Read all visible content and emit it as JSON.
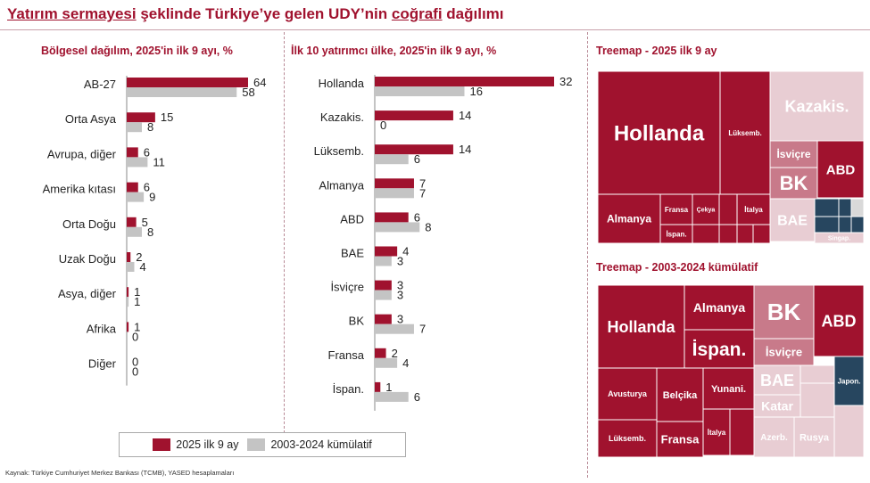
{
  "header": {
    "title_part1": "Yatırım sermayesi",
    "title_part2": " şeklinde Türkiye’ye gelen UDY’nin ",
    "title_part3": "coğrafi",
    "title_part4": " dağılımı"
  },
  "colors": {
    "primary": "#a0122e",
    "secondary": "#c4c4c4",
    "pink": "#e8cdd3",
    "rose": "#c87a8a",
    "navy": "#27465f"
  },
  "chart_data": [
    {
      "type": "bar",
      "orientation": "horizontal",
      "title": "Bölgesel dağılım, 2025'in ilk 9 ayı, %",
      "categories": [
        "AB-27",
        "Orta Asya",
        "Avrupa, diğer",
        "Amerika kıtası",
        "Orta Doğu",
        "Uzak Doğu",
        "Asya, diğer",
        "Afrika",
        "Diğer"
      ],
      "series": [
        {
          "name": "2025 ilk 9 ay",
          "values": [
            64,
            15,
            6,
            6,
            5,
            2,
            1,
            1,
            0
          ]
        },
        {
          "name": "2003-2024 kümülatif",
          "values": [
            58,
            8,
            11,
            9,
            8,
            4,
            1,
            0,
            0
          ]
        }
      ],
      "xlim": [
        0,
        64
      ]
    },
    {
      "type": "bar",
      "orientation": "horizontal",
      "title": "İlk 10 yatırımcı ülke, 2025'in ilk 9 ayı, %",
      "categories": [
        "Hollanda",
        "Kazakis.",
        "Lüksemb.",
        "Almanya",
        "ABD",
        "BAE",
        "İsviçre",
        "BK",
        "Fransa",
        "İspan."
      ],
      "series": [
        {
          "name": "2025 ilk 9 ay",
          "values": [
            32,
            14,
            14,
            7,
            6,
            4,
            3,
            3,
            2,
            1
          ]
        },
        {
          "name": "2003-2024 kümülatif",
          "values": [
            16,
            0,
            6,
            7,
            8,
            3,
            3,
            7,
            4,
            6
          ]
        }
      ],
      "xlim": [
        0,
        32
      ]
    },
    {
      "type": "treemap",
      "title": "Treemap - 2025 ilk 9 ay",
      "labels": [
        "Hollanda",
        "Lüksemb.",
        "Kazakis.",
        "İsviçre",
        "ABD",
        "BK",
        "BAE",
        "Almanya",
        "Fransa",
        "Çekya",
        "İtalya",
        "İspan.",
        "Singap."
      ]
    },
    {
      "type": "treemap",
      "title": "Treemap - 2003-2024 kümülatif",
      "labels": [
        "Hollanda",
        "Almanya",
        "İspan.",
        "BK",
        "ABD",
        "İsviçre",
        "BAE",
        "Katar",
        "Japon.",
        "Avusturya",
        "Belçika",
        "Yunani.",
        "İtalya",
        "Lüksemb.",
        "Fransa",
        "Azerb.",
        "Rusya"
      ]
    }
  ],
  "legend": {
    "s1": "2025 ilk 9 ay",
    "s2": "2003-2024 kümülatif"
  },
  "source": "Kaynak: Türkiye Cumhuriyet Merkez Bankası (TCMB), YASED hesaplamaları"
}
